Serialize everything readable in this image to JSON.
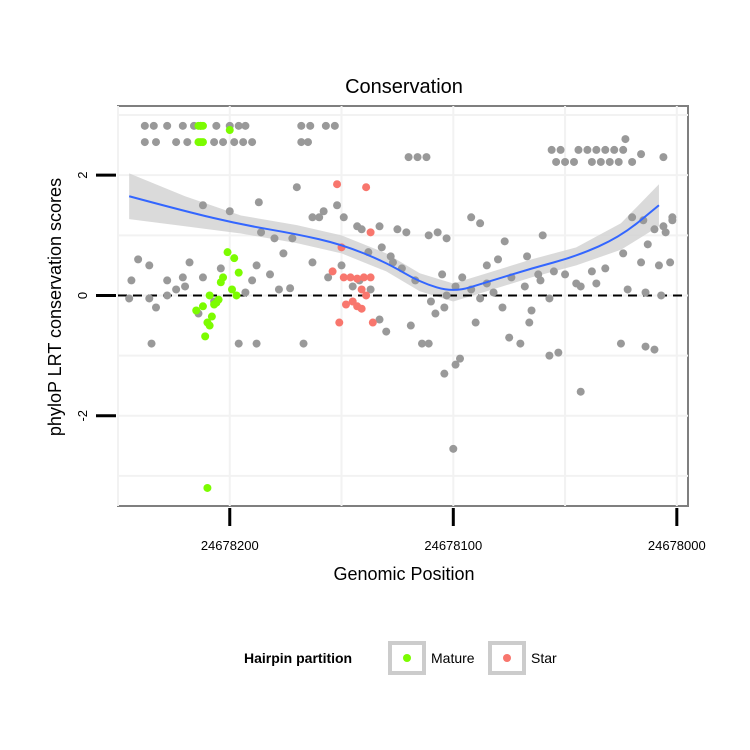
{
  "chart_data": {
    "type": "scatter",
    "title": "Conservation",
    "xlabel": "Genomic Position",
    "ylabel": "phyloP LRT conservation scores",
    "x_reversed": true,
    "xlim": [
      24678250,
      24677995
    ],
    "ylim": [
      -3.5,
      3.15
    ],
    "x_ticks": [
      24678200,
      24678100,
      24678000
    ],
    "y_ticks": [
      -2,
      0,
      2
    ],
    "reference_line": {
      "y": 0,
      "style": "dashed"
    },
    "legend": {
      "title": "Hairpin partition",
      "position": "bottom",
      "entries": [
        {
          "name": "Mature",
          "color": "#7CFC00"
        },
        {
          "name": "Star",
          "color": "#F8766D"
        }
      ]
    },
    "colors": {
      "other": "#999999",
      "mature": "#7CFC00",
      "star": "#F8766D",
      "smooth": "#3366FF",
      "band": "#D3D3D3"
    },
    "series": [
      {
        "group": "other",
        "points": [
          [
            24678238,
            2.82
          ],
          [
            24678234,
            2.82
          ],
          [
            24678228,
            2.82
          ],
          [
            24678221,
            2.82
          ],
          [
            24678216,
            2.82
          ],
          [
            24678213,
            2.82
          ],
          [
            24678206,
            2.82
          ],
          [
            24678200,
            2.82
          ],
          [
            24678196,
            2.82
          ],
          [
            24678193,
            2.82
          ],
          [
            24678168,
            2.82
          ],
          [
            24678164,
            2.82
          ],
          [
            24678157,
            2.82
          ],
          [
            24678153,
            2.82
          ],
          [
            24678238,
            2.55
          ],
          [
            24678233,
            2.55
          ],
          [
            24678224,
            2.55
          ],
          [
            24678219,
            2.55
          ],
          [
            24678207,
            2.55
          ],
          [
            24678203,
            2.55
          ],
          [
            24678198,
            2.55
          ],
          [
            24678194,
            2.55
          ],
          [
            24678190,
            2.55
          ],
          [
            24678168,
            2.55
          ],
          [
            24678165,
            2.55
          ],
          [
            24678120,
            2.3
          ],
          [
            24678116,
            2.3
          ],
          [
            24678112,
            2.3
          ],
          [
            24678056,
            2.42
          ],
          [
            24678052,
            2.42
          ],
          [
            24678044,
            2.42
          ],
          [
            24678040,
            2.42
          ],
          [
            24678036,
            2.42
          ],
          [
            24678032,
            2.42
          ],
          [
            24678028,
            2.42
          ],
          [
            24678024,
            2.42
          ],
          [
            24678054,
            2.22
          ],
          [
            24678050,
            2.22
          ],
          [
            24678046,
            2.22
          ],
          [
            24678038,
            2.22
          ],
          [
            24678034,
            2.22
          ],
          [
            24678030,
            2.22
          ],
          [
            24678026,
            2.22
          ],
          [
            24678020,
            2.22
          ],
          [
            24678023,
            2.6
          ],
          [
            24678016,
            2.35
          ],
          [
            24678006,
            2.3
          ],
          [
            24678212,
            1.5
          ],
          [
            24678200,
            1.4
          ],
          [
            24678187,
            1.55
          ],
          [
            24678170,
            1.8
          ],
          [
            24678158,
            1.4
          ],
          [
            24678152,
            1.5
          ],
          [
            24678149,
            1.3
          ],
          [
            24678143,
            1.15
          ],
          [
            24678141,
            1.1
          ],
          [
            24678133,
            1.15
          ],
          [
            24678125,
            1.1
          ],
          [
            24678121,
            1.05
          ],
          [
            24678186,
            1.05
          ],
          [
            24678180,
            0.95
          ],
          [
            24678172,
            0.95
          ],
          [
            24678163,
            1.3
          ],
          [
            24678160,
            1.3
          ],
          [
            24678188,
            0.5
          ],
          [
            24678182,
            0.35
          ],
          [
            24678176,
            0.7
          ],
          [
            24678163,
            0.55
          ],
          [
            24678138,
            0.72
          ],
          [
            24678132,
            0.8
          ],
          [
            24678128,
            0.65
          ],
          [
            24678241,
            0.6
          ],
          [
            24678236,
            0.5
          ],
          [
            24678228,
            0.25
          ],
          [
            24678221,
            0.3
          ],
          [
            24678218,
            0.55
          ],
          [
            24678212,
            0.3
          ],
          [
            24678244,
            0.25
          ],
          [
            24678245,
            -0.05
          ],
          [
            24678236,
            -0.05
          ],
          [
            24678233,
            -0.2
          ],
          [
            24678228,
            0.0
          ],
          [
            24678224,
            0.1
          ],
          [
            24678220,
            0.15
          ],
          [
            24678214,
            -0.3
          ],
          [
            24678207,
            -0.1
          ],
          [
            24678204,
            0.45
          ],
          [
            24678145,
            0.15
          ],
          [
            24678142,
            0.25
          ],
          [
            24678137,
            0.1
          ],
          [
            24678133,
            -0.4
          ],
          [
            24678130,
            -0.6
          ],
          [
            24678127,
            0.55
          ],
          [
            24678123,
            0.45
          ],
          [
            24678117,
            0.25
          ],
          [
            24678110,
            -0.1
          ],
          [
            24678108,
            -0.3
          ],
          [
            24678105,
            0.35
          ],
          [
            24678103,
            0.0
          ],
          [
            24678099,
            0.15
          ],
          [
            24678096,
            0.3
          ],
          [
            24678092,
            0.1
          ],
          [
            24678088,
            -0.05
          ],
          [
            24678085,
            0.2
          ],
          [
            24678082,
            0.05
          ],
          [
            24678078,
            -0.2
          ],
          [
            24678074,
            0.3
          ],
          [
            24678068,
            0.15
          ],
          [
            24678065,
            -0.25
          ],
          [
            24678061,
            0.25
          ],
          [
            24678057,
            -0.05
          ],
          [
            24678119,
            -0.5
          ],
          [
            24678111,
            -0.8
          ],
          [
            24678114,
            -0.8
          ],
          [
            24678104,
            -0.2
          ],
          [
            24678099,
            -1.15
          ],
          [
            24678097,
            -1.05
          ],
          [
            24678090,
            -0.45
          ],
          [
            24678085,
            0.5
          ],
          [
            24678080,
            0.6
          ],
          [
            24678075,
            -0.7
          ],
          [
            24678070,
            -0.8
          ],
          [
            24678066,
            -0.45
          ],
          [
            24678062,
            0.35
          ],
          [
            24678053,
            -0.95
          ],
          [
            24678043,
            0.15
          ],
          [
            24678036,
            0.2
          ],
          [
            24678022,
            0.1
          ],
          [
            24678014,
            0.05
          ],
          [
            24678007,
            0.0
          ],
          [
            24678111,
            1.0
          ],
          [
            24678107,
            1.05
          ],
          [
            24678103,
            0.95
          ],
          [
            24678092,
            1.3
          ],
          [
            24678088,
            1.2
          ],
          [
            24678077,
            0.9
          ],
          [
            24678067,
            0.65
          ],
          [
            24678060,
            1.0
          ],
          [
            24678055,
            0.4
          ],
          [
            24678050,
            0.35
          ],
          [
            24678045,
            0.2
          ],
          [
            24678020,
            1.3
          ],
          [
            24678015,
            1.25
          ],
          [
            24678010,
            1.1
          ],
          [
            24678005,
            1.05
          ],
          [
            24678013,
            0.85
          ],
          [
            24678024,
            0.7
          ],
          [
            24678016,
            0.55
          ],
          [
            24678032,
            0.45
          ],
          [
            24678038,
            0.4
          ],
          [
            24678025,
            -0.8
          ],
          [
            24678014,
            -0.85
          ],
          [
            24678010,
            -0.9
          ],
          [
            24678043,
            -1.6
          ],
          [
            24678057,
            -1.0
          ],
          [
            24678104,
            -1.3
          ],
          [
            24678100,
            -2.55
          ],
          [
            24678235,
            -0.8
          ],
          [
            24678196,
            -0.8
          ],
          [
            24678188,
            -0.8
          ],
          [
            24678167,
            -0.8
          ],
          [
            24678156,
            0.3
          ],
          [
            24678173,
            0.12
          ],
          [
            24678178,
            0.1
          ],
          [
            24678190,
            0.25
          ],
          [
            24678193,
            0.05
          ],
          [
            24678150,
            0.5
          ],
          [
            24678002,
            1.3
          ],
          [
            24678002,
            1.25
          ],
          [
            24678006,
            1.15
          ],
          [
            24678003,
            0.55
          ],
          [
            24678008,
            0.5
          ]
        ]
      },
      {
        "group": "mature",
        "name": "Mature",
        "points": [
          [
            24678214,
            2.82
          ],
          [
            24678213,
            2.82
          ],
          [
            24678212,
            2.82
          ],
          [
            24678214,
            2.55
          ],
          [
            24678213,
            2.55
          ],
          [
            24678212,
            2.55
          ],
          [
            24678200,
            2.75
          ],
          [
            24678201,
            0.72
          ],
          [
            24678198,
            0.62
          ],
          [
            24678196,
            0.38
          ],
          [
            24678203,
            0.3
          ],
          [
            24678204,
            0.22
          ],
          [
            24678199,
            0.1
          ],
          [
            24678197,
            0.0
          ],
          [
            24678209,
            0.0
          ],
          [
            24678205,
            -0.07
          ],
          [
            24678206,
            -0.12
          ],
          [
            24678207,
            -0.15
          ],
          [
            24678212,
            -0.18
          ],
          [
            24678215,
            -0.25
          ],
          [
            24678208,
            -0.35
          ],
          [
            24678210,
            -0.45
          ],
          [
            24678209,
            -0.5
          ],
          [
            24678211,
            -0.68
          ],
          [
            24678210,
            -3.2
          ]
        ]
      },
      {
        "group": "star",
        "name": "Star",
        "points": [
          [
            24678152,
            1.85
          ],
          [
            24678139,
            1.8
          ],
          [
            24678137,
            1.05
          ],
          [
            24678150,
            0.8
          ],
          [
            24678154,
            0.4
          ],
          [
            24678149,
            0.3
          ],
          [
            24678146,
            0.3
          ],
          [
            24678143,
            0.28
          ],
          [
            24678140,
            0.3
          ],
          [
            24678137,
            0.3
          ],
          [
            24678141,
            0.1
          ],
          [
            24678139,
            0.0
          ],
          [
            24678145,
            -0.1
          ],
          [
            24678143,
            -0.18
          ],
          [
            24678148,
            -0.15
          ],
          [
            24678141,
            -0.22
          ],
          [
            24678151,
            -0.45
          ],
          [
            24678136,
            -0.45
          ]
        ]
      }
    ],
    "smooth": {
      "x": [
        24678245,
        24678220,
        24678195,
        24678170,
        24678150,
        24678130,
        24678115,
        24678100,
        24678085,
        24678065,
        24678045,
        24678025,
        24678008
      ],
      "y": [
        1.65,
        1.4,
        1.18,
        1.02,
        0.85,
        0.55,
        0.22,
        0.05,
        0.22,
        0.45,
        0.65,
        0.98,
        1.5
      ],
      "band_half_width": [
        0.38,
        0.25,
        0.15,
        0.15,
        0.15,
        0.15,
        0.15,
        0.15,
        0.15,
        0.15,
        0.15,
        0.22,
        0.35
      ]
    }
  }
}
